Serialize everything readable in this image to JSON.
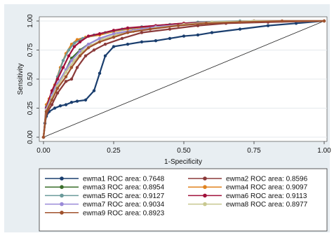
{
  "chart_data": {
    "type": "line",
    "xlabel": "1-Specificity",
    "ylabel": "Sensitivity",
    "xlim": [
      0,
      1
    ],
    "ylim": [
      0,
      1
    ],
    "x_ticks": [
      "0.00",
      "0.25",
      "0.50",
      "0.75",
      "1.00"
    ],
    "y_ticks": [
      "0.00",
      "0.25",
      "0.50",
      "0.75",
      "1.00"
    ],
    "grid": "horizontal",
    "legend_position": "bottom",
    "series": [
      {
        "name": "ewma1 ROC area: 0.7648",
        "color": "#1a3e6e",
        "x": [
          0,
          0.005,
          0.01,
          0.02,
          0.04,
          0.06,
          0.08,
          0.1,
          0.12,
          0.15,
          0.18,
          0.2,
          0.22,
          0.25,
          0.3,
          0.35,
          0.4,
          0.45,
          0.5,
          0.55,
          0.6,
          0.7,
          0.8,
          0.9,
          1.0
        ],
        "y": [
          0,
          0.12,
          0.18,
          0.22,
          0.25,
          0.27,
          0.28,
          0.3,
          0.31,
          0.32,
          0.4,
          0.55,
          0.7,
          0.78,
          0.8,
          0.82,
          0.83,
          0.85,
          0.87,
          0.88,
          0.9,
          0.93,
          0.96,
          0.98,
          1.0
        ]
      },
      {
        "name": "ewma2 ROC area: 0.8596",
        "color": "#8b3a3a",
        "x": [
          0,
          0.01,
          0.03,
          0.05,
          0.08,
          0.1,
          0.12,
          0.15,
          0.18,
          0.22,
          0.28,
          0.35,
          0.45,
          0.55,
          0.65,
          0.8,
          1.0
        ],
        "y": [
          0,
          0.2,
          0.28,
          0.38,
          0.48,
          0.5,
          0.6,
          0.7,
          0.75,
          0.8,
          0.85,
          0.9,
          0.93,
          0.96,
          0.98,
          0.99,
          1.0
        ]
      },
      {
        "name": "ewma3 ROC area: 0.8954",
        "color": "#3a6e2a",
        "x": [
          0,
          0.01,
          0.03,
          0.05,
          0.08,
          0.1,
          0.13,
          0.16,
          0.2,
          0.25,
          0.32,
          0.4,
          0.5,
          0.6,
          0.75,
          1.0
        ],
        "y": [
          0,
          0.22,
          0.35,
          0.45,
          0.58,
          0.68,
          0.75,
          0.8,
          0.85,
          0.89,
          0.92,
          0.95,
          0.97,
          0.99,
          1.0,
          1.0
        ]
      },
      {
        "name": "ewma4 ROC area: 0.9097",
        "color": "#e0821e",
        "x": [
          0,
          0.01,
          0.02,
          0.04,
          0.06,
          0.08,
          0.1,
          0.12,
          0.15,
          0.2,
          0.25,
          0.3,
          0.4,
          0.5,
          0.6,
          0.75,
          1.0
        ],
        "y": [
          0,
          0.28,
          0.33,
          0.45,
          0.6,
          0.72,
          0.8,
          0.84,
          0.86,
          0.88,
          0.91,
          0.93,
          0.96,
          0.98,
          0.99,
          1.0,
          1.0
        ]
      },
      {
        "name": "ewma5 ROC area: 0.9127",
        "color": "#6a9a9a",
        "x": [
          0,
          0.01,
          0.03,
          0.05,
          0.07,
          0.09,
          0.11,
          0.14,
          0.18,
          0.22,
          0.28,
          0.35,
          0.45,
          0.55,
          0.7,
          1.0
        ],
        "y": [
          0,
          0.26,
          0.38,
          0.52,
          0.66,
          0.75,
          0.81,
          0.85,
          0.88,
          0.9,
          0.93,
          0.95,
          0.97,
          0.99,
          1.0,
          1.0
        ]
      },
      {
        "name": "ewma6 ROC area: 0.9113",
        "color": "#a0103a",
        "x": [
          0,
          0.01,
          0.03,
          0.05,
          0.07,
          0.09,
          0.11,
          0.13,
          0.16,
          0.2,
          0.25,
          0.3,
          0.4,
          0.5,
          0.6,
          0.75,
          1.0
        ],
        "y": [
          0,
          0.25,
          0.4,
          0.5,
          0.6,
          0.7,
          0.78,
          0.82,
          0.87,
          0.89,
          0.92,
          0.94,
          0.96,
          0.98,
          0.99,
          1.0,
          1.0
        ]
      },
      {
        "name": "ewma7 ROC area: 0.9034",
        "color": "#9a8ad8",
        "x": [
          0,
          0.01,
          0.03,
          0.05,
          0.08,
          0.1,
          0.13,
          0.16,
          0.2,
          0.25,
          0.32,
          0.4,
          0.5,
          0.6,
          0.75,
          1.0
        ],
        "y": [
          0,
          0.24,
          0.36,
          0.46,
          0.58,
          0.66,
          0.74,
          0.8,
          0.85,
          0.89,
          0.92,
          0.95,
          0.97,
          0.99,
          1.0,
          1.0
        ]
      },
      {
        "name": "ewma8 ROC area: 0.8977",
        "color": "#c8c890",
        "x": [
          0,
          0.01,
          0.03,
          0.05,
          0.08,
          0.11,
          0.14,
          0.17,
          0.21,
          0.26,
          0.32,
          0.4,
          0.5,
          0.6,
          0.75,
          1.0
        ],
        "y": [
          0,
          0.23,
          0.34,
          0.44,
          0.56,
          0.66,
          0.74,
          0.79,
          0.84,
          0.88,
          0.91,
          0.94,
          0.97,
          0.99,
          1.0,
          1.0
        ]
      },
      {
        "name": "ewma9 ROC area: 0.8923",
        "color": "#a0522d",
        "x": [
          0,
          0.01,
          0.03,
          0.05,
          0.08,
          0.1,
          0.13,
          0.16,
          0.2,
          0.25,
          0.3,
          0.38,
          0.48,
          0.58,
          0.7,
          0.85,
          1.0
        ],
        "y": [
          0,
          0.22,
          0.32,
          0.42,
          0.52,
          0.6,
          0.7,
          0.77,
          0.82,
          0.86,
          0.9,
          0.93,
          0.96,
          0.98,
          0.99,
          1.0,
          1.0
        ]
      }
    ]
  }
}
